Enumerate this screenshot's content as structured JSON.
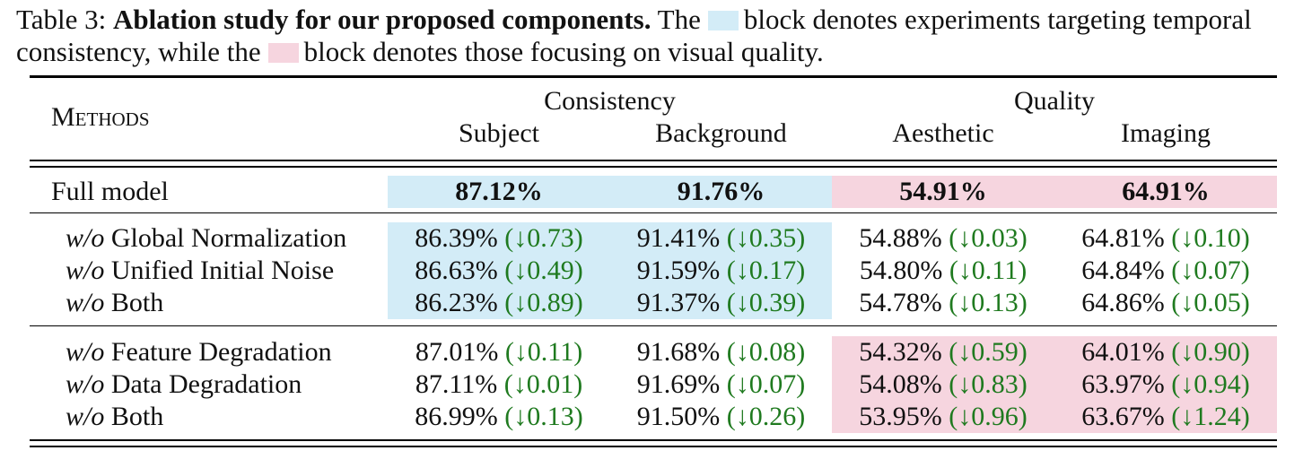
{
  "caption": {
    "prefix": "Table 3:",
    "title": "Ablation study for our proposed components.",
    "part1": "The",
    "part2": "block denotes experiments targeting temporal consistency, while the",
    "part3": "block denotes those focusing on visual quality."
  },
  "colors": {
    "consistency_block": "#d3ecf7",
    "quality_block": "#f6d5df",
    "delta_text": "#1f7a1f"
  },
  "header": {
    "methods": "Methods",
    "group_consistency": "Consistency",
    "group_quality": "Quality",
    "columns": [
      "Subject",
      "Background",
      "Aesthetic",
      "Imaging"
    ]
  },
  "full_model": {
    "label": "Full model",
    "values": [
      "87.12%",
      "91.76%",
      "54.91%",
      "64.91%"
    ]
  },
  "group1": {
    "rows": [
      {
        "prefix": "w/o",
        "name": "Global Normalization",
        "cells": [
          {
            "value": "86.39%",
            "delta": "(↓0.73)"
          },
          {
            "value": "91.41%",
            "delta": "(↓0.35)"
          },
          {
            "value": "54.88%",
            "delta": "(↓0.03)"
          },
          {
            "value": "64.81%",
            "delta": "(↓0.10)"
          }
        ]
      },
      {
        "prefix": "w/o",
        "name": "Unified Initial Noise",
        "cells": [
          {
            "value": "86.63%",
            "delta": "(↓0.49)"
          },
          {
            "value": "91.59%",
            "delta": "(↓0.17)"
          },
          {
            "value": "54.80%",
            "delta": "(↓0.11)"
          },
          {
            "value": "64.84%",
            "delta": "(↓0.07)"
          }
        ]
      },
      {
        "prefix": "w/o",
        "name": "Both",
        "cells": [
          {
            "value": "86.23%",
            "delta": "(↓0.89)"
          },
          {
            "value": "91.37%",
            "delta": "(↓0.39)"
          },
          {
            "value": "54.78%",
            "delta": "(↓0.13)"
          },
          {
            "value": "64.86%",
            "delta": "(↓0.05)"
          }
        ]
      }
    ]
  },
  "group2": {
    "rows": [
      {
        "prefix": "w/o",
        "name": "Feature Degradation",
        "cells": [
          {
            "value": "87.01%",
            "delta": "(↓0.11)"
          },
          {
            "value": "91.68%",
            "delta": "(↓0.08)"
          },
          {
            "value": "54.32%",
            "delta": "(↓0.59)"
          },
          {
            "value": "64.01%",
            "delta": "(↓0.90)"
          }
        ]
      },
      {
        "prefix": "w/o",
        "name": "Data Degradation",
        "cells": [
          {
            "value": "87.11%",
            "delta": "(↓0.01)"
          },
          {
            "value": "91.69%",
            "delta": "(↓0.07)"
          },
          {
            "value": "54.08%",
            "delta": "(↓0.83)"
          },
          {
            "value": "63.97%",
            "delta": "(↓0.94)"
          }
        ]
      },
      {
        "prefix": "w/o",
        "name": "Both",
        "cells": [
          {
            "value": "86.99%",
            "delta": "(↓0.13)"
          },
          {
            "value": "91.50%",
            "delta": "(↓0.26)"
          },
          {
            "value": "53.95%",
            "delta": "(↓0.96)"
          },
          {
            "value": "63.67%",
            "delta": "(↓1.24)"
          }
        ]
      }
    ]
  }
}
